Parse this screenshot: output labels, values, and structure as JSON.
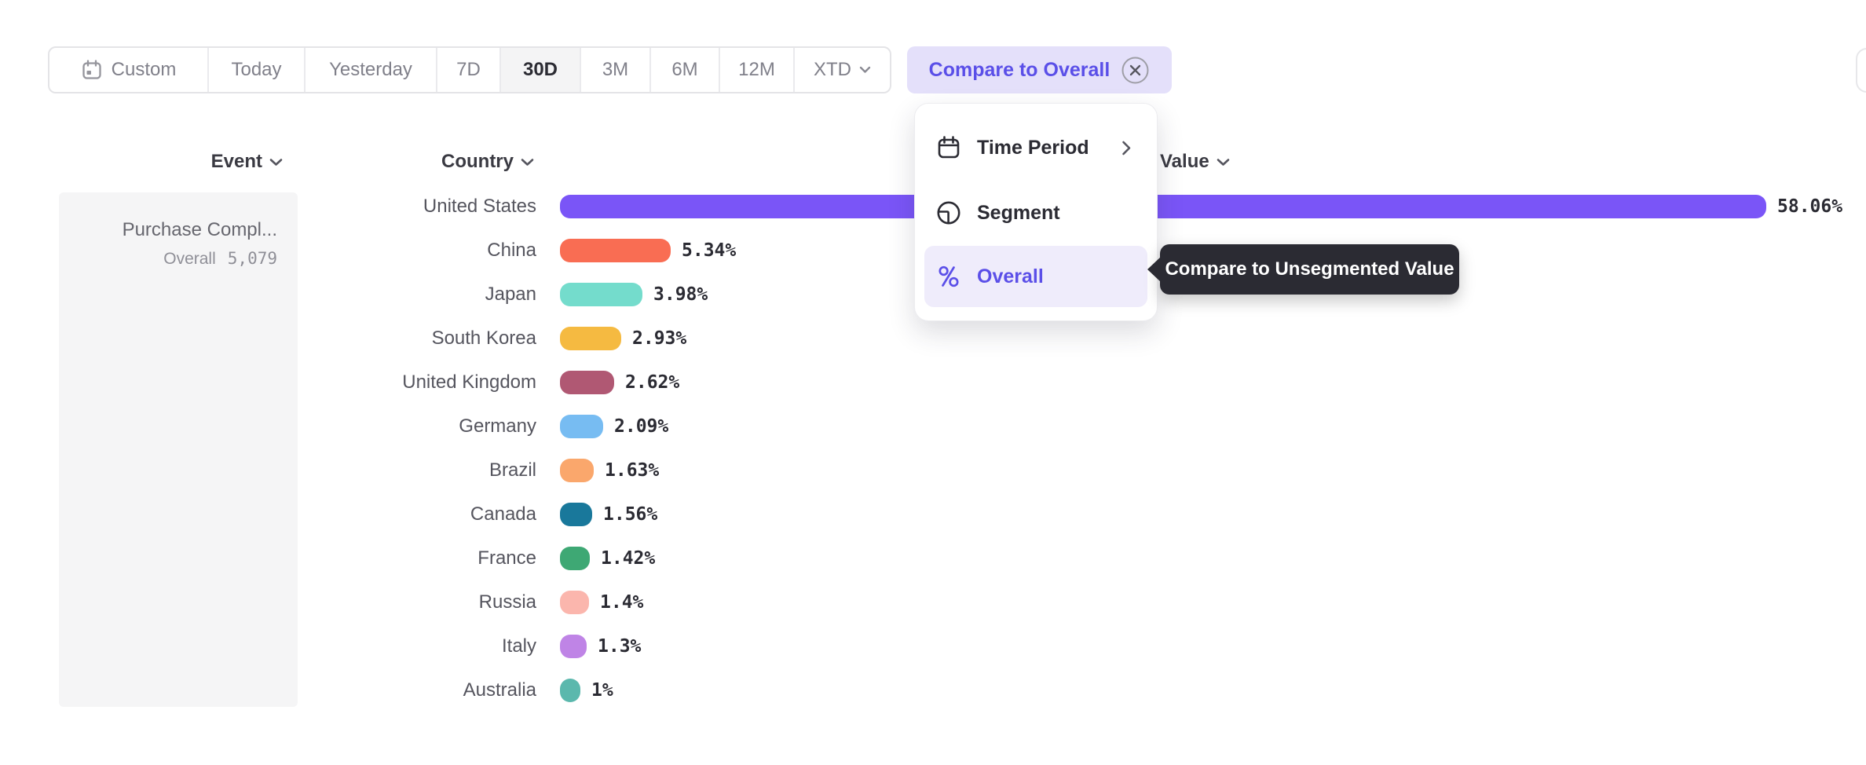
{
  "toolbar": {
    "selected": "30D",
    "items": [
      {
        "label": "Custom",
        "icon": "calendar-icon"
      },
      {
        "label": "Today"
      },
      {
        "label": "Yesterday"
      },
      {
        "label": "7D"
      },
      {
        "label": "30D"
      },
      {
        "label": "3M"
      },
      {
        "label": "6M"
      },
      {
        "label": "12M"
      },
      {
        "label": "XTD",
        "has_dropdown": true
      }
    ]
  },
  "compare_chip": {
    "label": "Compare to Overall"
  },
  "menu": {
    "items": [
      {
        "label": "Time Period",
        "icon": "calendar-icon",
        "has_submenu": true
      },
      {
        "label": "Segment",
        "icon": "segment-icon"
      },
      {
        "label": "Overall",
        "icon": "percent-icon",
        "selected": true
      }
    ]
  },
  "tooltip": {
    "text": "Compare to Unsegmented Value"
  },
  "columns": {
    "event": "Event",
    "country": "Country",
    "value": "Value"
  },
  "event_panel": {
    "event_name": "Purchase Compl...",
    "overall_label": "Overall",
    "overall_value": "5,079"
  },
  "chart_data": {
    "type": "bar",
    "orientation": "horizontal",
    "categories": [
      "United States",
      "China",
      "Japan",
      "South Korea",
      "United Kingdom",
      "Germany",
      "Brazil",
      "Canada",
      "France",
      "Russia",
      "Italy",
      "Australia"
    ],
    "values": [
      58.06,
      5.34,
      3.98,
      2.93,
      2.62,
      2.09,
      1.63,
      1.56,
      1.42,
      1.4,
      1.3,
      1.0
    ],
    "value_labels": [
      "58.06%",
      "5.34%",
      "3.98%",
      "2.93%",
      "2.62%",
      "2.09%",
      "1.63%",
      "1.56%",
      "1.42%",
      "1.4%",
      "1.3%",
      "1%"
    ],
    "colors": [
      "#7A55F7",
      "#F96D53",
      "#74DCCC",
      "#F5BA41",
      "#B05873",
      "#77BCF2",
      "#FAA76C",
      "#19789B",
      "#3EA874",
      "#FBB6AD",
      "#BF84E6",
      "#5BB8AD"
    ],
    "unit": "%"
  }
}
